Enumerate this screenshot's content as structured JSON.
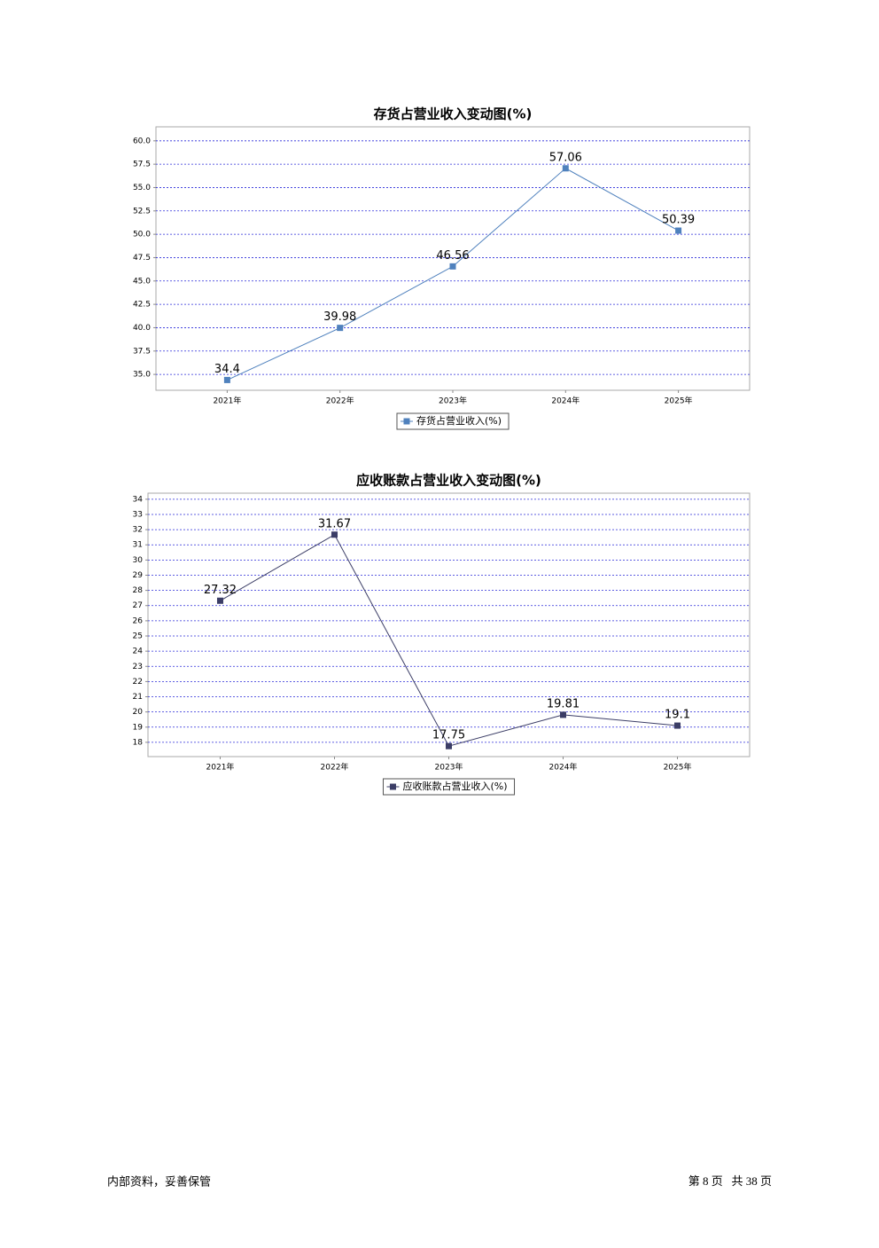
{
  "chart_data": [
    {
      "type": "line",
      "title": "存货占营业收入变动图(%)",
      "categories": [
        "2021年",
        "2022年",
        "2023年",
        "2024年",
        "2025年"
      ],
      "series": [
        {
          "name": "存货占营业收入(%)",
          "color": "#4f81bd",
          "values": [
            34.4,
            39.98,
            46.56,
            57.06,
            50.39
          ]
        }
      ],
      "ylim": [
        33.3,
        61.5
      ],
      "yticks": [
        {
          "value": 35,
          "label": "35.0"
        },
        {
          "value": 37.5,
          "label": "37.5"
        },
        {
          "value": 40,
          "label": "40.0"
        },
        {
          "value": 42.5,
          "label": "42.5"
        },
        {
          "value": 45,
          "label": "45.0"
        },
        {
          "value": 47.5,
          "label": "47.5"
        },
        {
          "value": 50,
          "label": "50.0"
        },
        {
          "value": 52.5,
          "label": "52.5"
        },
        {
          "value": 55,
          "label": "55.0"
        },
        {
          "value": 57.5,
          "label": "57.5"
        },
        {
          "value": 60,
          "label": "60.0"
        }
      ],
      "grid": true
    },
    {
      "type": "line",
      "title": "应收账款占营业收入变动图(%)",
      "categories": [
        "2021年",
        "2022年",
        "2023年",
        "2024年",
        "2025年"
      ],
      "series": [
        {
          "name": "应收账款占营业收入(%)",
          "color": "#3b3d66",
          "values": [
            27.32,
            31.67,
            17.75,
            19.81,
            19.1
          ]
        }
      ],
      "ylim": [
        17.06,
        34.4
      ],
      "yticks": [
        18,
        19,
        20,
        21,
        22,
        23,
        24,
        25,
        26,
        27,
        28,
        29,
        30,
        31,
        32,
        33,
        34
      ],
      "grid": true
    }
  ],
  "footer": {
    "left": "内部资料，妥善保管",
    "right": "第 8 页   共 38 页"
  }
}
